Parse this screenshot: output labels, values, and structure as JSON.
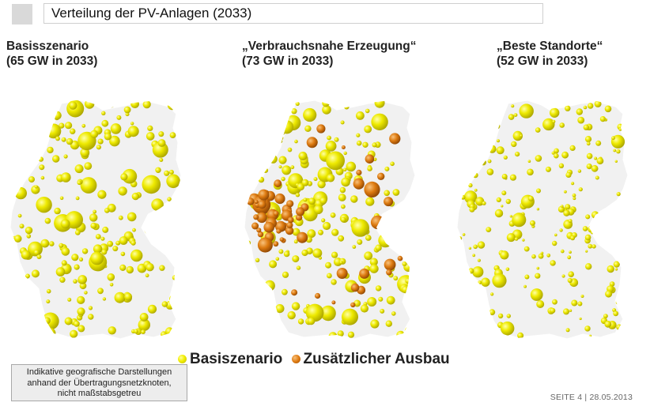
{
  "header": {
    "title": "Verteilung der PV-Anlagen (2033)"
  },
  "scenarios": [
    {
      "title": "Basisszenario",
      "subtitle": "(65 GW in 2033)"
    },
    {
      "title": "„Verbrauchsnahe Erzeugung“",
      "subtitle": "(73 GW in 2033)"
    },
    {
      "title": "„Beste Standorte“",
      "subtitle": "(52 GW in 2033)"
    }
  ],
  "legend": {
    "base": "Basiszenario",
    "extra": "Zusätzlicher Ausbau"
  },
  "note": {
    "lines": [
      "Indikative geografische Darstellungen",
      "anhand der Übertragungsnetzknoten,",
      "nicht maßstabsgetreu"
    ]
  },
  "footer": {
    "page": "SEITE 4 | 28.05.2013"
  },
  "colors": {
    "base": "#eeea00",
    "extra": "#e07c12",
    "map_bg": "#f1f1f1",
    "title_square": "#d9d9d9"
  }
}
